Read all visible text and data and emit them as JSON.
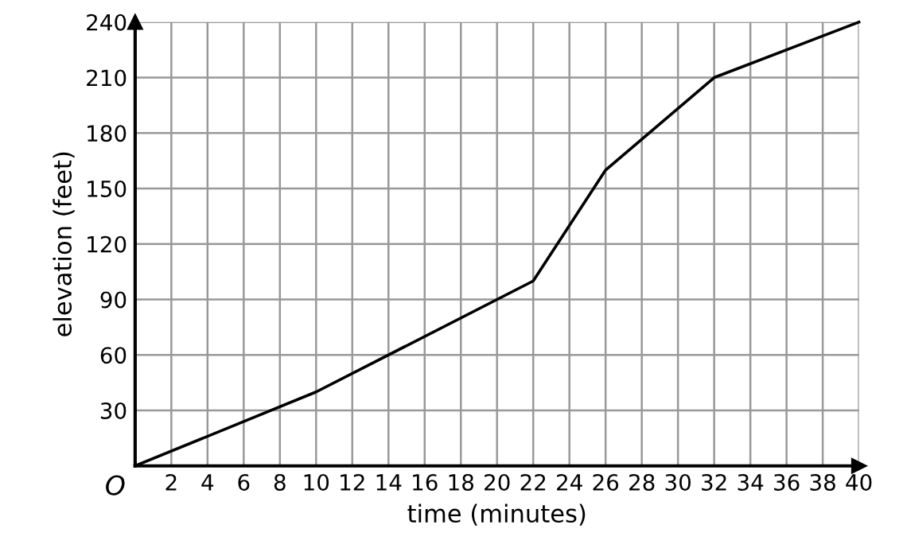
{
  "chart_data": {
    "type": "line",
    "xlabel": "time (minutes)",
    "ylabel": "elevation (feet)",
    "x": [
      0,
      10,
      22,
      26,
      32,
      40
    ],
    "series": [
      {
        "color": "#000000",
        "values": [
          0,
          40,
          100,
          160,
          210,
          240
        ]
      }
    ],
    "xlim": [
      0,
      40
    ],
    "ylim": [
      0,
      240
    ],
    "xticks": [
      2,
      4,
      6,
      8,
      10,
      12,
      14,
      16,
      18,
      20,
      22,
      24,
      26,
      28,
      30,
      32,
      34,
      36,
      38,
      40
    ],
    "yticks": [
      30,
      60,
      90,
      120,
      150,
      180,
      210,
      240
    ],
    "grid": true,
    "marker": "none",
    "line_style": "solid",
    "annotations": [
      {
        "text": "O",
        "x": 0,
        "y": 0
      }
    ]
  }
}
